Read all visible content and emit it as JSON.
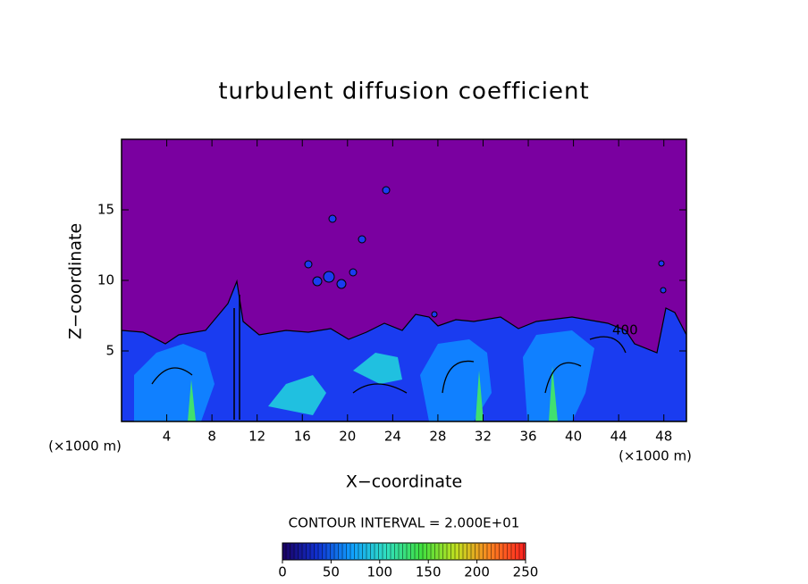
{
  "chart_data": {
    "type": "contour",
    "title": "turbulent diffusion coefficient",
    "x_label": "X−coordinate",
    "y_label": "Z−coordinate",
    "x_unit": "(×1000 m)",
    "y_unit": "(×1000 m)",
    "xlim": [
      0,
      50
    ],
    "xticks": [
      4,
      8,
      12,
      16,
      20,
      24,
      28,
      32,
      36,
      40,
      44,
      48
    ],
    "ylim": [
      0,
      20
    ],
    "yticks": [
      5,
      10,
      15
    ],
    "background_color": "#7a00a0",
    "contour_interval_label": "CONTOUR INTERVAL = 2.000E+01",
    "annotations": [
      "400"
    ],
    "colorbar": {
      "lim": [
        0,
        250
      ],
      "ticks": [
        0,
        50,
        100,
        150,
        200,
        250
      ],
      "colors": [
        "#1a0060",
        "#1030d0",
        "#10a0ff",
        "#30e0c0",
        "#40e040",
        "#c0e020",
        "#ff8020",
        "#ff2020"
      ]
    }
  }
}
